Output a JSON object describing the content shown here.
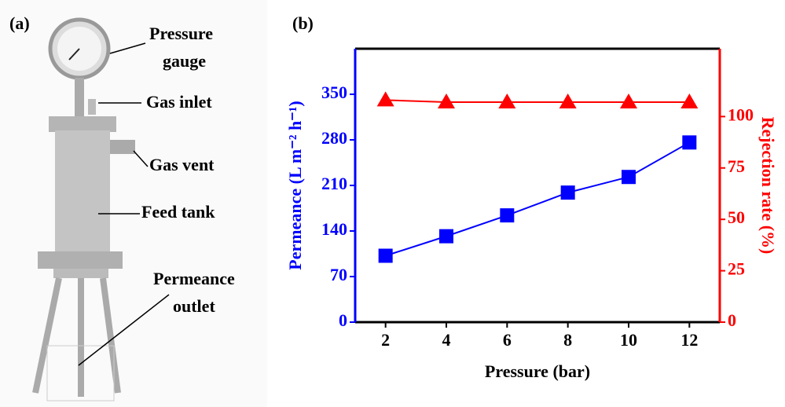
{
  "photo_panel": {
    "label": "(a)",
    "annotations": [
      "Pressure",
      "gauge",
      "Gas inlet",
      "Gas vent",
      "Feed tank",
      "Permeance",
      "outlet"
    ]
  },
  "chart_data": {
    "type": "line",
    "panel_label": "(b)",
    "x_label": "Pressure (bar)",
    "y_label": "Permeance (L m⁻² h⁻¹)",
    "y2_label": "Rejection rate (%)",
    "x": [
      2,
      4,
      6,
      8,
      10,
      12
    ],
    "series": [
      {
        "color": "#0000ff",
        "marker": "square",
        "values": [
          102,
          132,
          164,
          199,
          223,
          276
        ]
      },
      {
        "color": "#ff0000",
        "marker": "triangle",
        "axis": "y2",
        "values": [
          108,
          107,
          107,
          107,
          107,
          107
        ]
      }
    ],
    "xlim": [
      1,
      13
    ],
    "xticks": [
      2,
      4,
      6,
      8,
      10,
      12
    ],
    "ylim": [
      0,
      420
    ],
    "yticks": [
      0,
      70,
      140,
      210,
      280,
      350
    ],
    "y2lim": [
      0,
      133
    ],
    "y2ticks": [
      0,
      25,
      50,
      75,
      100
    ],
    "y_color": "#0000ff",
    "y2_color": "#ff0000"
  }
}
